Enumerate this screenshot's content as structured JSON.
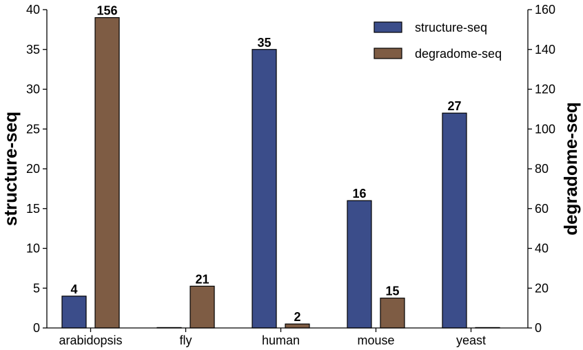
{
  "chart_data": {
    "type": "bar",
    "categories": [
      "arabidopsis",
      "fly",
      "human",
      "mouse",
      "yeast"
    ],
    "series": [
      {
        "name": "structure-seq",
        "values": [
          4,
          0,
          35,
          16,
          27
        ],
        "axis": "left",
        "color": "#3b4d8a"
      },
      {
        "name": "degradome-seq",
        "values": [
          156,
          21,
          2,
          15,
          0
        ],
        "axis": "right",
        "color": "#7e5c44"
      }
    ],
    "data_labels": [
      {
        "category": "arabidopsis",
        "series": "structure-seq",
        "text": "4"
      },
      {
        "category": "arabidopsis",
        "series": "degradome-seq",
        "text": "156"
      },
      {
        "category": "fly",
        "series": "degradome-seq",
        "text": "21"
      },
      {
        "category": "human",
        "series": "structure-seq",
        "text": "35"
      },
      {
        "category": "human",
        "series": "degradome-seq",
        "text": "2"
      },
      {
        "category": "mouse",
        "series": "structure-seq",
        "text": "16"
      },
      {
        "category": "mouse",
        "series": "degradome-seq",
        "text": "15"
      },
      {
        "category": "yeast",
        "series": "structure-seq",
        "text": "27"
      }
    ],
    "ylabel_left": "structure-seq",
    "ylabel_right": "degradome-seq",
    "ylim_left": [
      0,
      40
    ],
    "ylim_right": [
      0,
      160
    ],
    "yticks_left": [
      0,
      5,
      10,
      15,
      20,
      25,
      30,
      35,
      40
    ],
    "yticks_right": [
      0,
      20,
      40,
      60,
      80,
      100,
      120,
      140,
      160
    ],
    "legend": {
      "position": "top-right",
      "entries": [
        "structure-seq",
        "degradome-seq"
      ]
    },
    "grid": false
  }
}
